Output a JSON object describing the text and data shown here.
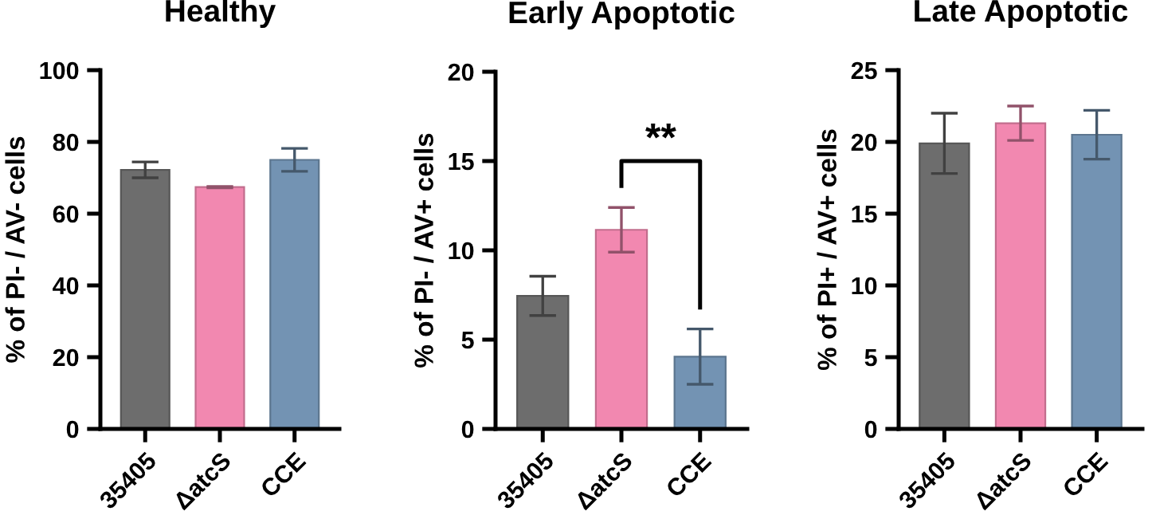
{
  "chart_data": [
    {
      "type": "bar",
      "title": "Healthy",
      "ylabel": "% of PI- / AV- cells",
      "categories": [
        "35405",
        "ΔatcS",
        "CCE"
      ],
      "values": [
        72.2,
        67.4,
        75.0
      ],
      "errors": [
        2.2,
        0.2,
        3.2
      ],
      "colors": [
        "#6d6d6d",
        "#f288b0",
        "#7393b3"
      ],
      "ylim": [
        0,
        100
      ],
      "yticks": [
        0,
        20,
        40,
        60,
        80,
        100
      ],
      "grid": false
    },
    {
      "type": "bar",
      "title": "Early Apoptotic",
      "ylabel": "% of PI- / AV+ cells",
      "categories": [
        "35405",
        "ΔatcS",
        "CCE"
      ],
      "values": [
        7.45,
        11.15,
        4.05
      ],
      "errors": [
        1.1,
        1.25,
        1.55
      ],
      "colors": [
        "#6d6d6d",
        "#f288b0",
        "#7393b3"
      ],
      "ylim": [
        0,
        20
      ],
      "yticks": [
        0,
        5,
        10,
        15,
        20
      ],
      "grid": false,
      "annotations": [
        "**"
      ]
    },
    {
      "type": "bar",
      "title": "Late Apoptotic",
      "ylabel": "% of PI+ / AV+ cells",
      "categories": [
        "35405",
        "ΔatcS",
        "CCE"
      ],
      "values": [
        19.9,
        21.3,
        20.5
      ],
      "errors": [
        2.1,
        1.2,
        1.7
      ],
      "colors": [
        "#6d6d6d",
        "#f288b0",
        "#7393b3"
      ],
      "ylim": [
        0,
        25
      ],
      "yticks": [
        0,
        5,
        10,
        15,
        20,
        25
      ],
      "grid": false
    }
  ]
}
